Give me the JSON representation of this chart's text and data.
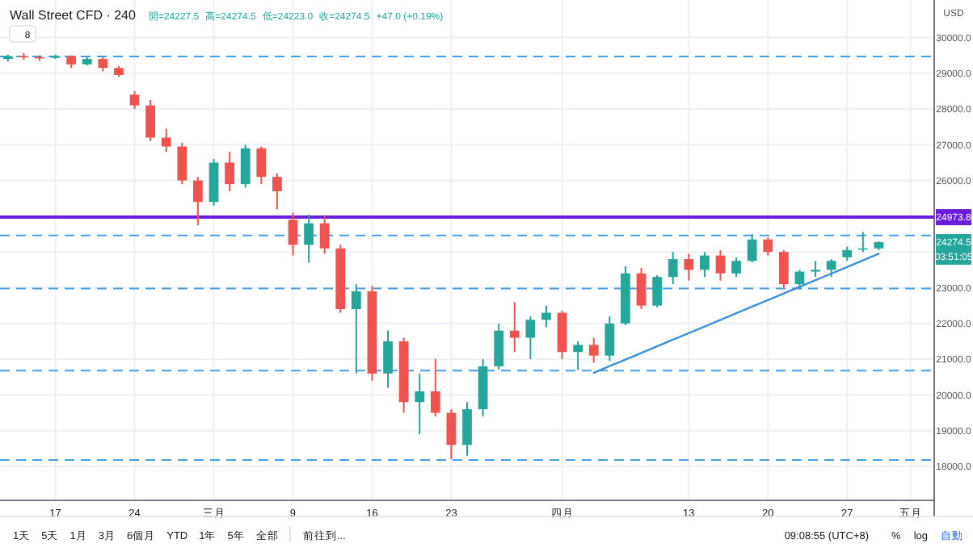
{
  "chart_data": {
    "type": "candlestick",
    "title": "Wall Street CFD · 240",
    "ylabel": "USD",
    "categories": [
      null,
      null,
      null,
      "17",
      null,
      null,
      null,
      null,
      "24",
      null,
      null,
      null,
      null,
      "三月",
      null,
      null,
      null,
      null,
      "9",
      null,
      null,
      null,
      null,
      "16",
      null,
      null,
      null,
      null,
      "23",
      null,
      null,
      null,
      null,
      null,
      null,
      "四月",
      null,
      null,
      null,
      null,
      null,
      null,
      null,
      "13",
      null,
      null,
      null,
      null,
      "20",
      null,
      null,
      null,
      null,
      "27",
      null,
      null,
      null,
      "五月",
      null
    ],
    "ohlc": [
      [
        29400,
        29520,
        29330,
        29480
      ],
      [
        29480,
        29560,
        29380,
        29450
      ],
      [
        29450,
        29500,
        29350,
        29430
      ],
      [
        29430,
        29520,
        29400,
        29480
      ],
      [
        29480,
        29500,
        29150,
        29250
      ],
      [
        29250,
        29450,
        29220,
        29400
      ],
      [
        29400,
        29450,
        29050,
        29150
      ],
      [
        29150,
        29200,
        28900,
        28950
      ],
      [
        28400,
        28500,
        28000,
        28100
      ],
      [
        28100,
        28250,
        27100,
        27200
      ],
      [
        27200,
        27450,
        26800,
        26950
      ],
      [
        26950,
        27050,
        25900,
        26000
      ],
      [
        26000,
        26100,
        24750,
        25400
      ],
      [
        25400,
        26600,
        25300,
        26500
      ],
      [
        26500,
        26800,
        25700,
        25900
      ],
      [
        25900,
        27000,
        25800,
        26900
      ],
      [
        26900,
        26950,
        25900,
        26100
      ],
      [
        26100,
        26200,
        25200,
        25700
      ],
      [
        24900,
        25100,
        23900,
        24200
      ],
      [
        24200,
        25050,
        23700,
        24800
      ],
      [
        24800,
        25000,
        23950,
        24100
      ],
      [
        24100,
        24200,
        22300,
        22400
      ],
      [
        22400,
        23100,
        20600,
        22900
      ],
      [
        22900,
        23050,
        20400,
        20600
      ],
      [
        20600,
        21800,
        20200,
        21500
      ],
      [
        21500,
        21600,
        19500,
        19800
      ],
      [
        19800,
        20600,
        18900,
        20100
      ],
      [
        20100,
        21000,
        19400,
        19500
      ],
      [
        19500,
        19600,
        18200,
        18600
      ],
      [
        18600,
        19800,
        18300,
        19600
      ],
      [
        19600,
        21000,
        19400,
        20800
      ],
      [
        20800,
        22000,
        20700,
        21800
      ],
      [
        21800,
        22600,
        21200,
        21600
      ],
      [
        21600,
        22200,
        21000,
        22100
      ],
      [
        22100,
        22500,
        21900,
        22300
      ],
      [
        22300,
        22350,
        21000,
        21200
      ],
      [
        21200,
        21500,
        20700,
        21400
      ],
      [
        21400,
        21600,
        20900,
        21100
      ],
      [
        21100,
        22200,
        20950,
        22000
      ],
      [
        22000,
        23600,
        21950,
        23400
      ],
      [
        23400,
        23550,
        22400,
        22500
      ],
      [
        22500,
        23350,
        22450,
        23300
      ],
      [
        23300,
        24000,
        23100,
        23800
      ],
      [
        23800,
        23950,
        23200,
        23500
      ],
      [
        23500,
        24000,
        23300,
        23900
      ],
      [
        23900,
        24050,
        23200,
        23400
      ],
      [
        23400,
        23850,
        23300,
        23750
      ],
      [
        23750,
        24500,
        23700,
        24350
      ],
      [
        24350,
        24400,
        23900,
        24000
      ],
      [
        24000,
        24050,
        23000,
        23100
      ],
      [
        23100,
        23500,
        22950,
        23450
      ],
      [
        23450,
        23750,
        23300,
        23500
      ],
      [
        23500,
        23800,
        23300,
        23750
      ],
      [
        23850,
        24150,
        23750,
        24050
      ],
      [
        24100,
        24560,
        24000,
        24100
      ],
      [
        24100,
        24300,
        24050,
        24274.5
      ],
      null,
      null,
      null
    ],
    "series": [
      {
        "type": "line",
        "color": "#3d8fd9",
        "values": [
          null,
          null,
          null,
          null,
          null,
          null,
          null,
          null,
          null,
          null,
          null,
          null,
          null,
          null,
          null,
          null,
          null,
          null,
          null,
          null,
          null,
          null,
          null,
          null,
          null,
          null,
          null,
          null,
          null,
          null,
          null,
          null,
          null,
          null,
          null,
          null,
          null,
          20620,
          20805,
          20990,
          21175,
          21360,
          21545,
          21730,
          21915,
          22100,
          22285,
          22470,
          22655,
          22840,
          23025,
          23210,
          23395,
          23580,
          23765,
          23950,
          null,
          null,
          null
        ]
      }
    ],
    "ylim": [
      17050,
      31050
    ],
    "yticks": [
      {
        "value": 18000,
        "label": "18000.0"
      },
      {
        "value": 19000,
        "label": "19000.0"
      },
      {
        "value": 20000,
        "label": "20000.0"
      },
      {
        "value": 21000,
        "label": "21000.0"
      },
      {
        "value": 22000,
        "label": "22000.0"
      },
      {
        "value": 23000,
        "label": "23000.0"
      },
      {
        "value": 24000,
        "label": null
      },
      {
        "value": 25000,
        "label": null
      },
      {
        "value": 26000,
        "label": "26000.0"
      },
      {
        "value": 27000,
        "label": "27000.0"
      },
      {
        "value": 28000,
        "label": "28000.0"
      },
      {
        "value": 29000,
        "label": "29000.0"
      },
      {
        "value": 30000,
        "label": "30000.0"
      }
    ],
    "ref_lines": [
      {
        "axis": "y",
        "value": 29470,
        "color": "#4a9fe0",
        "line_style": "dashed"
      },
      {
        "axis": "y",
        "value": 24460,
        "color": "#4a9fe0",
        "line_style": "dashed"
      },
      {
        "axis": "y",
        "value": 22980,
        "color": "#4a9fe0",
        "line_style": "dashed"
      },
      {
        "axis": "y",
        "value": 20680,
        "color": "#4a9fe0",
        "line_style": "dashed"
      },
      {
        "axis": "y",
        "value": 18180,
        "color": "#4a9fe0",
        "line_style": "dashed"
      },
      {
        "axis": "y",
        "value": 24973.8,
        "label": "24973.8",
        "color": "#6a1bdb",
        "line_style": "solid"
      }
    ],
    "grid": true,
    "annotations": [
      "開=24227.5",
      "高=24274.5",
      "低=24223.0",
      "收=24274.5",
      "+47.0 (+0.19%)",
      "8",
      "1天",
      "5天",
      "1月",
      "3月",
      "6個月",
      "YTD",
      "1年",
      "5年",
      "全部",
      "前往到...",
      "09:08:55 (UTC+8)",
      "%",
      "log",
      "自動",
      "24274.5",
      "03:51:05"
    ]
  }
}
